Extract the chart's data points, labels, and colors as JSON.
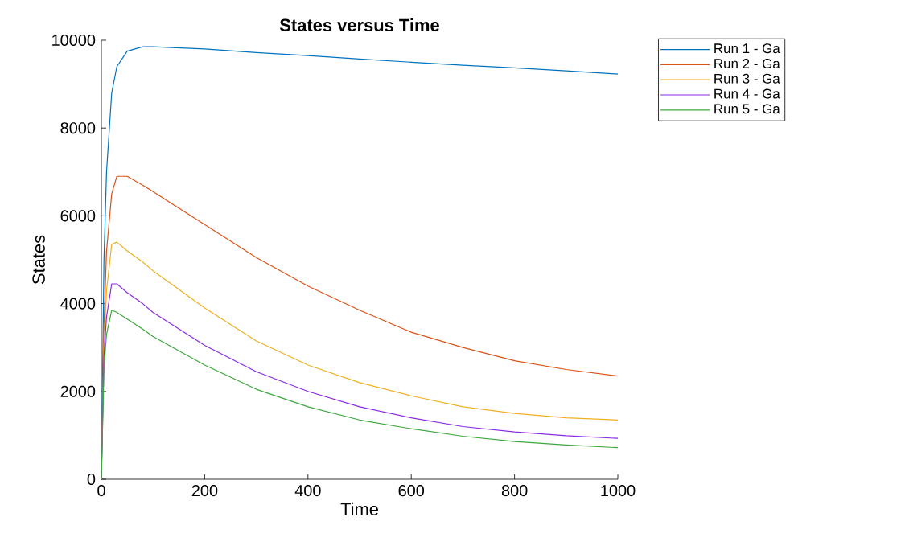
{
  "chart_data": {
    "type": "line",
    "title": "States versus Time",
    "xlabel": "Time",
    "ylabel": "States",
    "xlim": [
      0,
      1000
    ],
    "ylim": [
      0,
      10000
    ],
    "xticks": [
      0,
      200,
      400,
      600,
      800,
      1000
    ],
    "yticks": [
      0,
      2000,
      4000,
      6000,
      8000,
      10000
    ],
    "grid": false,
    "legend": "top right",
    "line_style": "solid",
    "marker": "none",
    "x": [
      0,
      5,
      10,
      20,
      30,
      50,
      80,
      100,
      200,
      300,
      400,
      500,
      600,
      700,
      800,
      900,
      1000
    ],
    "series": [
      {
        "name": "Run 1 - Ga",
        "color": "#0072bd",
        "values": [
          0,
          5000,
          7000,
          8800,
          9400,
          9750,
          9850,
          9850,
          9800,
          9720,
          9650,
          9570,
          9500,
          9430,
          9370,
          9300,
          9230
        ]
      },
      {
        "name": "Run 2 - Ga",
        "color": "#d95319",
        "values": [
          0,
          3500,
          5200,
          6500,
          6900,
          6900,
          6700,
          6550,
          5800,
          5050,
          4400,
          3850,
          3350,
          3000,
          2700,
          2500,
          2350
        ]
      },
      {
        "name": "Run 3 - Ga",
        "color": "#edb120",
        "values": [
          0,
          3000,
          4300,
          5350,
          5400,
          5200,
          4950,
          4750,
          3900,
          3150,
          2600,
          2200,
          1900,
          1650,
          1500,
          1400,
          1350
        ]
      },
      {
        "name": "Run 4 - Ga",
        "color": "#8a2be2",
        "values": [
          0,
          2800,
          3700,
          4450,
          4450,
          4250,
          4000,
          3800,
          3050,
          2450,
          2000,
          1650,
          1400,
          1200,
          1080,
          990,
          930
        ]
      },
      {
        "name": "Run 5 - Ga",
        "color": "#3ca83c",
        "values": [
          0,
          2500,
          3300,
          3850,
          3800,
          3650,
          3420,
          3250,
          2600,
          2050,
          1650,
          1350,
          1150,
          980,
          860,
          780,
          720
        ]
      }
    ]
  }
}
